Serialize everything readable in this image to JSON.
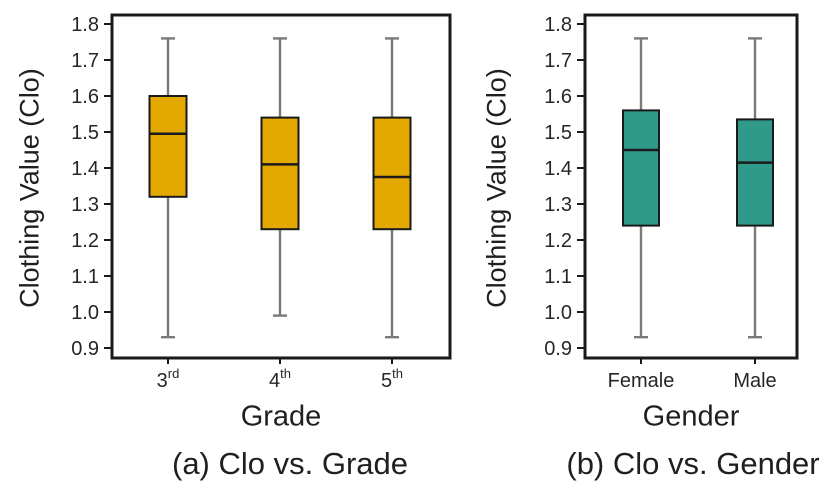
{
  "style": {
    "background": "#ffffff",
    "frame_color": "#1a1a1a",
    "whisker_color": "#7a7a7a",
    "text_color": "#262626",
    "grade_box_color": "#e4a900",
    "gender_box_color": "#2f998a"
  },
  "chart_data": [
    {
      "type": "box",
      "name": "clo-vs-grade",
      "caption": "(a) Clo vs. Grade",
      "xlabel": "Grade",
      "ylabel": "Clothing Value (Clo)",
      "box_color": "#e4a900",
      "ylim": [
        0.9,
        1.8
      ],
      "yticks": [
        1.8,
        1.7,
        1.6,
        1.5,
        1.4,
        1.3,
        1.2,
        1.1,
        1.0,
        0.9
      ],
      "grid": false,
      "legend": "none",
      "categories": [
        {
          "label": "3",
          "sup": "rd",
          "stats": {
            "whisker_low": 0.93,
            "q1": 1.32,
            "median": 1.495,
            "q3": 1.6,
            "whisker_high": 1.76
          }
        },
        {
          "label": "4",
          "sup": "th",
          "stats": {
            "whisker_low": 0.99,
            "q1": 1.23,
            "median": 1.41,
            "q3": 1.54,
            "whisker_high": 1.76
          }
        },
        {
          "label": "5",
          "sup": "th",
          "stats": {
            "whisker_low": 0.93,
            "q1": 1.23,
            "median": 1.375,
            "q3": 1.54,
            "whisker_high": 1.76
          }
        }
      ]
    },
    {
      "type": "box",
      "name": "clo-vs-gender",
      "caption": "(b) Clo vs. Gender",
      "xlabel": "Gender",
      "ylabel": "Clothing Value (Clo)",
      "box_color": "#2f998a",
      "ylim": [
        0.9,
        1.8
      ],
      "yticks": [
        1.8,
        1.7,
        1.6,
        1.5,
        1.4,
        1.3,
        1.2,
        1.1,
        1.0,
        0.9
      ],
      "grid": false,
      "legend": "none",
      "categories": [
        {
          "label": "Female",
          "sup": "",
          "stats": {
            "whisker_low": 0.93,
            "q1": 1.24,
            "median": 1.45,
            "q3": 1.56,
            "whisker_high": 1.76
          }
        },
        {
          "label": "Male",
          "sup": "",
          "stats": {
            "whisker_low": 0.93,
            "q1": 1.24,
            "median": 1.415,
            "q3": 1.535,
            "whisker_high": 1.76
          }
        }
      ]
    }
  ]
}
